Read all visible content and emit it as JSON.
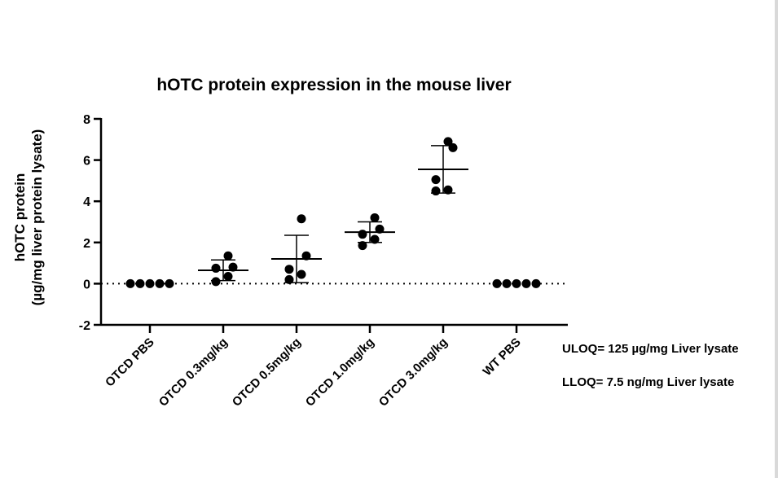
{
  "chart_data": {
    "type": "scatter",
    "title": "hOTC protein expression in the mouse liver",
    "ylabel_line1": "hOTC protein",
    "ylabel_line2": "(µg/mg liver protein lysate)",
    "xlabel": "",
    "ylim": [
      -2,
      8
    ],
    "yticks": [
      -2,
      0,
      2,
      4,
      6,
      8
    ],
    "reference_line": {
      "y": 0,
      "style": "dotted"
    },
    "grid": false,
    "categories": [
      "OTCD PBS",
      "OTCD 0.3mg/kg",
      "OTCD 0.5mg/kg",
      "OTCD 1.0mg/kg",
      "OTCD 3.0mg/kg",
      "WT PBS"
    ],
    "groups": [
      {
        "points": [
          0,
          0,
          0,
          0,
          0
        ],
        "mean": 0,
        "sd": 0
      },
      {
        "points": [
          1.35,
          0.8,
          0.75,
          0.35,
          0.1
        ],
        "mean": 0.65,
        "sd": 0.5
      },
      {
        "points": [
          3.15,
          1.35,
          0.7,
          0.45,
          0.2
        ],
        "mean": 1.2,
        "sd": 1.15
      },
      {
        "points": [
          3.2,
          2.65,
          2.4,
          2.15,
          1.85
        ],
        "mean": 2.5,
        "sd": 0.5
      },
      {
        "points": [
          6.9,
          6.6,
          5.05,
          4.55,
          4.5
        ],
        "mean": 5.55,
        "sd": 1.15
      },
      {
        "points": [
          0,
          0,
          0,
          0,
          0
        ],
        "mean": 0,
        "sd": 0
      }
    ],
    "annotations": [
      "ULOQ= 125 µg/mg Liver lysate",
      "LLOQ= 7.5 ng/mg Liver lysate"
    ]
  }
}
